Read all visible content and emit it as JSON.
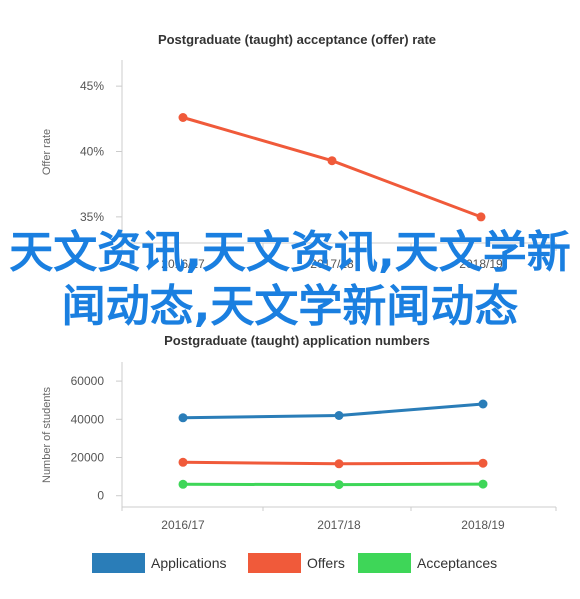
{
  "overlay_text": "天文资讯,天文资讯,天文学新闻动态,天文学新闻动态",
  "chart_data": [
    {
      "type": "line",
      "title": "Postgraduate (taught) acceptance (offer) rate",
      "ylabel": "Offer rate",
      "categories": [
        "2016/17",
        "2017/18",
        "2018/19"
      ],
      "y_ticks": [
        "45%",
        "40%",
        "35%"
      ],
      "ylim": [
        33,
        47
      ],
      "series": [
        {
          "values": [
            42.6,
            39.3,
            35.0
          ],
          "color": "#f05a3a"
        }
      ]
    },
    {
      "type": "line",
      "title": "Postgraduate (taught) application numbers",
      "ylabel": "Number of students",
      "categories": [
        "2016/17",
        "2017/18",
        "2018/19"
      ],
      "y_ticks": [
        "60000",
        "40000",
        "20000",
        "0"
      ],
      "ylim": [
        -8000,
        70000
      ],
      "series": [
        {
          "name": "Applications",
          "values": [
            40800,
            42000,
            48000
          ],
          "color": "#2a7db8"
        },
        {
          "name": "Offers",
          "values": [
            17500,
            16700,
            17000
          ],
          "color": "#f05a3a"
        },
        {
          "name": "Acceptances",
          "values": [
            6000,
            5800,
            6100
          ],
          "color": "#3ed658"
        }
      ]
    }
  ]
}
